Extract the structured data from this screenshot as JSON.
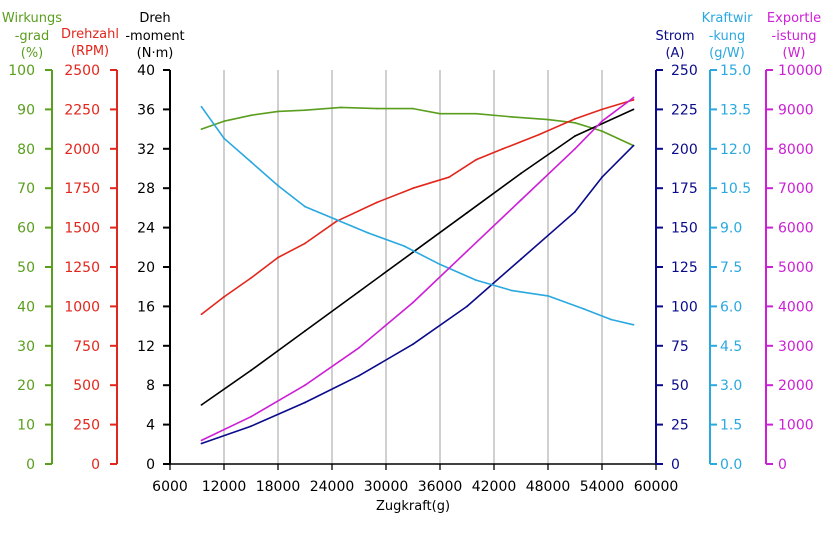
{
  "chart_data": {
    "type": "line",
    "xlabel": "Zugkraft(g)",
    "x_ticks": [
      "6000",
      "12000",
      "18000",
      "24000",
      "30000",
      "36000",
      "42000",
      "48000",
      "54000",
      "60000"
    ],
    "xlim": [
      6000,
      60000
    ],
    "axes": [
      {
        "key": "eff",
        "label_lines": [
          "Wirkungs",
          "-grad",
          "(%)"
        ],
        "color": "#5a9e1e",
        "ylim": [
          0,
          100
        ],
        "ticks": [
          "0",
          "10",
          "20",
          "30",
          "40",
          "50",
          "60",
          "70",
          "80",
          "90",
          "100"
        ]
      },
      {
        "key": "rpm",
        "label_lines": [
          "Drehzahl",
          "(RPM)"
        ],
        "color": "#e3261c",
        "ylim": [
          0,
          2500
        ],
        "ticks": [
          "0",
          "250",
          "500",
          "750",
          "1000",
          "1250",
          "1500",
          "1750",
          "2000",
          "2250",
          "2500"
        ]
      },
      {
        "key": "torque",
        "label_lines": [
          "Dreh",
          "-moment",
          "(N·m)"
        ],
        "color": "#000000",
        "ylim": [
          0,
          40
        ],
        "ticks": [
          "0",
          "4",
          "8",
          "12",
          "16",
          "20",
          "24",
          "28",
          "32",
          "36",
          "40"
        ]
      },
      {
        "key": "current",
        "label_lines": [
          "Strom",
          "(A)"
        ],
        "color": "#0a0a8c",
        "ylim": [
          0,
          250
        ],
        "ticks": [
          "0",
          "25",
          "50",
          "75",
          "100",
          "125",
          "150",
          "175",
          "200",
          "225",
          "250"
        ]
      },
      {
        "key": "force",
        "label_lines": [
          "Kraftwir",
          "-kung",
          "(g/W)"
        ],
        "color": "#2aa8e0",
        "ylim": [
          0,
          15
        ],
        "ticks": [
          "0.0",
          "1.5",
          "3.0",
          "4.5",
          "6.0",
          "7.5",
          "9.0",
          "10.5",
          "12.0",
          "13.5",
          "15.0"
        ]
      },
      {
        "key": "power",
        "label_lines": [
          "Exportle",
          "-istung",
          "(W)"
        ],
        "color": "#cc1fd6",
        "ylim": [
          0,
          10000
        ],
        "ticks": [
          "0",
          "1000",
          "2000",
          "3000",
          "4000",
          "5000",
          "6000",
          "7000",
          "8000",
          "9000",
          "10000"
        ]
      }
    ],
    "series": [
      {
        "name": "Wirkungsgrad",
        "axis": "eff",
        "color": "#5a9e1e",
        "x": [
          9500,
          12000,
          15000,
          18000,
          21000,
          25000,
          29000,
          33000,
          36000,
          40000,
          44000,
          48000,
          51000,
          54000,
          57500
        ],
        "y": [
          85,
          87,
          88.5,
          89.5,
          89.8,
          90.5,
          90.2,
          90.2,
          88.9,
          88.9,
          88.1,
          87.4,
          86.6,
          84.5,
          80.8
        ]
      },
      {
        "name": "Drehzahl",
        "axis": "rpm",
        "color": "#e3261c",
        "x": [
          9500,
          12000,
          15000,
          18000,
          21000,
          24500,
          29000,
          33000,
          37000,
          40000,
          43000,
          47000,
          51000,
          54000,
          57500
        ],
        "y": [
          950,
          1060,
          1180,
          1310,
          1400,
          1540,
          1660,
          1750,
          1820,
          1930,
          2000,
          2090,
          2190,
          2250,
          2310
        ]
      },
      {
        "name": "Drehmoment",
        "axis": "torque",
        "color": "#000000",
        "x": [
          9500,
          15000,
          21000,
          27000,
          33000,
          39000,
          45000,
          51000,
          57500
        ],
        "y": [
          6,
          9.5,
          13.5,
          17.5,
          21.5,
          25.5,
          29.5,
          33.3,
          36
        ]
      },
      {
        "name": "Strom",
        "axis": "current",
        "color": "#0a0a8c",
        "x": [
          9500,
          15000,
          21000,
          27000,
          33000,
          39000,
          45000,
          51000,
          54000,
          57500
        ],
        "y": [
          13,
          24,
          39,
          56,
          76,
          100,
          130,
          160,
          182,
          202
        ]
      },
      {
        "name": "Kraftwirkung",
        "axis": "force",
        "color": "#2aa8e0",
        "x": [
          9500,
          12000,
          15000,
          18000,
          21000,
          24500,
          28000,
          32000,
          36000,
          40000,
          44000,
          48000,
          52000,
          55000,
          57500
        ],
        "y": [
          13.6,
          12.4,
          11.5,
          10.6,
          9.8,
          9.3,
          8.8,
          8.3,
          7.6,
          7.0,
          6.6,
          6.4,
          5.9,
          5.5,
          5.3
        ]
      },
      {
        "name": "Exportleistung",
        "axis": "power",
        "color": "#cc1fd6",
        "x": [
          9500,
          15000,
          21000,
          27000,
          33000,
          39000,
          45000,
          51000,
          54000,
          57500
        ],
        "y": [
          600,
          1200,
          2000,
          2950,
          4100,
          5400,
          6700,
          8000,
          8700,
          9300
        ]
      }
    ]
  }
}
